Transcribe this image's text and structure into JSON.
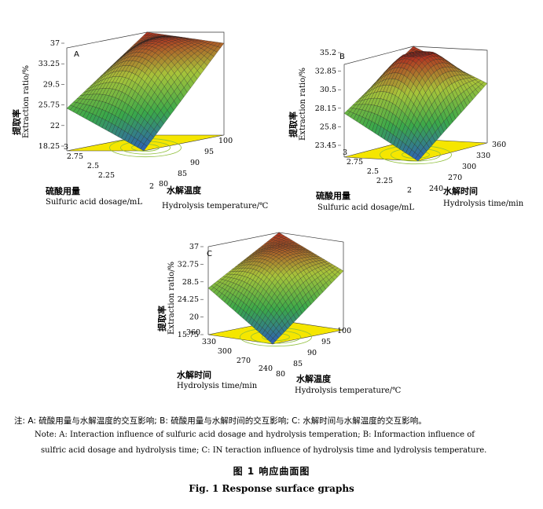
{
  "chart_data": [
    {
      "type": "surface",
      "panel": "A",
      "z_label_cn": "提取率",
      "z_label_en": "Extraction ratio/%",
      "z_ticks": [
        "18.25",
        "22",
        "25.75",
        "29.5",
        "33.25",
        "37"
      ],
      "x_label_cn": "硫酸用量",
      "x_label_en": "Sulfuric acid dosage/mL",
      "x_ticks": [
        "2",
        "2.25",
        "2.5",
        "2.75",
        "3"
      ],
      "y_label_cn": "水解温度",
      "y_label_en": "Hydrolysis temperature/℃",
      "y_ticks": [
        "80",
        "85",
        "90",
        "95",
        "100"
      ],
      "corner_values": {
        "front_min": 18.25,
        "left_x3_y80": 26.0,
        "right_x2_y100": 35.0,
        "back_max": 37.0
      },
      "colors": [
        "#2f5fb8",
        "#3aa84a",
        "#a8c43a",
        "#b03020"
      ],
      "floor_color": "#f5e600"
    },
    {
      "type": "surface",
      "panel": "B",
      "z_label_cn": "提取率",
      "z_label_en": "Extraction ratio/%",
      "z_ticks": [
        "23.45",
        "25.8",
        "28.15",
        "30.5",
        "32.85",
        "35.2"
      ],
      "x_label_cn": "硫酸用量",
      "x_label_en": "Sulfuric acid dosage/mL",
      "x_ticks": [
        "2",
        "2.25",
        "2.5",
        "2.75",
        "3"
      ],
      "y_label_cn": "水解时间",
      "y_label_en": "Hydrolysis time/min",
      "y_ticks": [
        "240",
        "270",
        "300",
        "330",
        "360"
      ],
      "corner_values": {
        "front_min": 23.45,
        "left": 29.0,
        "right": 31.0,
        "back_max": 35.2
      },
      "colors": [
        "#2f5fb8",
        "#3aa84a",
        "#a8c43a",
        "#b03020"
      ],
      "floor_color": "#f5e600"
    },
    {
      "type": "surface",
      "panel": "C",
      "z_label_cn": "提取率",
      "z_label_en": "Extraction ratio/%",
      "z_ticks": [
        "15.75",
        "20",
        "24.25",
        "28.5",
        "32.75",
        "37"
      ],
      "x_label_cn": "水解时间",
      "x_label_en": "Hydrolysis time/min",
      "x_ticks": [
        "240",
        "270",
        "300",
        "330",
        "360"
      ],
      "y_label_cn": "水解温度",
      "y_label_en": "Hydrolysis temperature/℃",
      "y_ticks": [
        "80",
        "85",
        "90",
        "95",
        "100"
      ],
      "corner_values": {
        "front_min": 15.75,
        "left": 27.0,
        "right": 30.0,
        "back_max": 37.0
      },
      "colors": [
        "#2f5fb8",
        "#3aa84a",
        "#a8c43a",
        "#b03020"
      ],
      "floor_color": "#f5e600"
    }
  ],
  "notes": {
    "cn": "注: A: 硫酸用量与水解温度的交互影响; B: 硫酸用量与水解时间的交互影响; C: 水解时间与水解温度的交互影响。",
    "en_line1": "Note:  A:  Interaction influence of sulfuric acid dosage and hydrolysis temperation;  B:  Informaction influence of",
    "en_line2": "sulfric acid dosage and hydrolysis time;  C:  IN teraction influence of hydrolysis time and lydrolysis temperature."
  },
  "figure": {
    "caption_cn": "图 1    响应曲面图",
    "caption_en": "Fig. 1    Response surface graphs"
  }
}
